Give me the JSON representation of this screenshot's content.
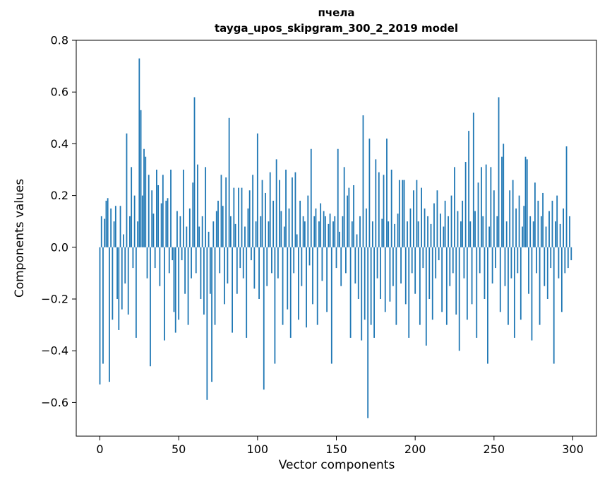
{
  "figure": {
    "background": "#ffffff",
    "text_color": "#000000"
  },
  "chart_data": {
    "type": "bar",
    "title_line1": "пчела",
    "title_line2": "tayga_upos_skipgram_300_2_2019 model",
    "title": "пчела\ntayga_upos_skipgram_300_2_2019 model",
    "xlabel": "Vector components",
    "ylabel": "Components values",
    "bar_color": "#1f77b4",
    "grid": false,
    "legend": "none",
    "xlim": [
      -15,
      315
    ],
    "ylim": [
      -0.73,
      0.8
    ],
    "xticks": [
      0,
      50,
      100,
      150,
      200,
      250,
      300
    ],
    "yticks": [
      -0.6,
      -0.4,
      -0.2,
      0.0,
      0.2,
      0.4,
      0.6,
      0.8
    ],
    "x_is_index": true,
    "n_components": 300,
    "values": [
      -0.53,
      0.12,
      -0.45,
      0.11,
      0.18,
      0.19,
      -0.52,
      0.15,
      -0.28,
      0.1,
      0.16,
      -0.2,
      -0.32,
      0.16,
      -0.24,
      0.05,
      -0.14,
      0.44,
      -0.26,
      0.12,
      0.31,
      -0.08,
      0.2,
      -0.35,
      0.1,
      0.73,
      0.53,
      0.2,
      0.38,
      0.35,
      -0.12,
      0.28,
      -0.46,
      0.22,
      0.13,
      -0.08,
      0.3,
      0.24,
      -0.15,
      0.17,
      0.28,
      -0.36,
      0.18,
      0.19,
      -0.1,
      0.3,
      -0.05,
      -0.25,
      -0.33,
      0.14,
      -0.28,
      0.12,
      -0.05,
      0.3,
      -0.18,
      0.08,
      -0.3,
      0.15,
      -0.12,
      0.25,
      0.58,
      -0.1,
      0.32,
      0.08,
      -0.2,
      0.12,
      -0.26,
      0.31,
      -0.59,
      0.06,
      -0.18,
      -0.52,
      0.1,
      -0.3,
      0.14,
      0.18,
      -0.1,
      0.28,
      0.16,
      -0.22,
      0.27,
      -0.14,
      0.5,
      0.12,
      -0.33,
      0.23,
      0.09,
      -0.18,
      0.23,
      -0.08,
      0.23,
      -0.12,
      0.08,
      -0.35,
      0.15,
      0.22,
      -0.05,
      0.28,
      -0.16,
      0.1,
      0.44,
      -0.2,
      0.12,
      0.26,
      -0.55,
      0.21,
      -0.15,
      0.1,
      0.29,
      -0.1,
      0.18,
      -0.45,
      0.34,
      -0.12,
      0.26,
      0.14,
      -0.3,
      0.08,
      0.3,
      -0.24,
      0.15,
      -0.35,
      0.27,
      -0.1,
      0.29,
      0.05,
      -0.28,
      0.18,
      -0.15,
      0.12,
      0.1,
      -0.31,
      0.2,
      -0.07,
      0.38,
      -0.22,
      0.12,
      0.15,
      -0.3,
      0.1,
      0.17,
      -0.13,
      0.14,
      0.12,
      -0.25,
      0.09,
      0.13,
      -0.45,
      0.1,
      0.12,
      -0.08,
      0.38,
      0.06,
      -0.15,
      0.12,
      0.31,
      -0.1,
      0.2,
      0.23,
      -0.35,
      0.1,
      0.24,
      -0.14,
      0.05,
      -0.2,
      0.12,
      -0.36,
      0.51,
      -0.28,
      0.15,
      -0.66,
      0.42,
      -0.3,
      0.1,
      -0.35,
      0.34,
      -0.12,
      0.29,
      -0.2,
      0.11,
      0.28,
      -0.25,
      0.42,
      0.1,
      -0.21,
      0.3,
      -0.15,
      0.09,
      -0.3,
      0.13,
      0.26,
      -0.14,
      0.26,
      0.26,
      -0.22,
      0.1,
      -0.35,
      0.15,
      -0.1,
      0.22,
      -0.18,
      0.26,
      0.1,
      -0.3,
      0.23,
      -0.08,
      0.15,
      -0.38,
      0.12,
      -0.2,
      0.09,
      -0.28,
      0.17,
      -0.12,
      0.22,
      -0.05,
      0.13,
      -0.25,
      0.08,
      0.18,
      -0.3,
      0.12,
      -0.15,
      0.2,
      -0.1,
      0.31,
      -0.26,
      0.14,
      -0.4,
      0.1,
      0.18,
      -0.12,
      0.33,
      -0.28,
      0.45,
      0.1,
      -0.22,
      0.52,
      0.14,
      -0.35,
      0.25,
      -0.1,
      0.31,
      0.12,
      -0.2,
      0.32,
      -0.45,
      0.08,
      0.31,
      -0.14,
      0.22,
      -0.08,
      0.12,
      0.58,
      -0.25,
      0.35,
      0.4,
      -0.15,
      0.1,
      -0.3,
      0.22,
      -0.12,
      0.26,
      -0.35,
      0.15,
      -0.1,
      0.2,
      -0.28,
      0.08,
      0.16,
      0.35,
      0.34,
      -0.18,
      0.12,
      -0.36,
      0.1,
      0.25,
      -0.1,
      0.18,
      -0.3,
      0.12,
      0.21,
      -0.15,
      0.08,
      -0.2,
      0.14,
      -0.08,
      0.18,
      -0.45,
      0.1,
      0.2,
      -0.12,
      0.09,
      -0.25,
      0.15,
      -0.1,
      0.39,
      -0.08,
      0.12,
      -0.05
    ]
  }
}
